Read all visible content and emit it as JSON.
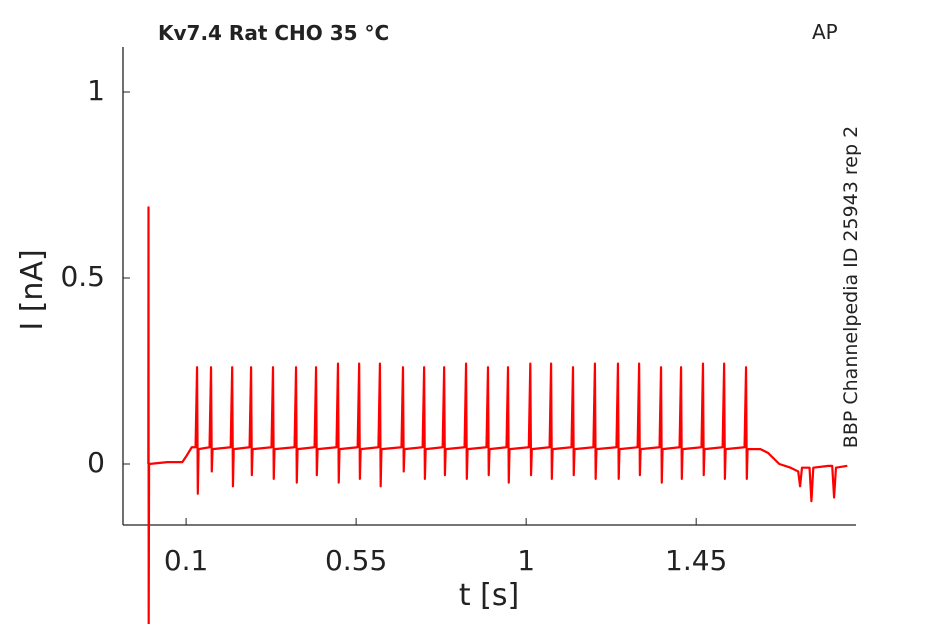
{
  "chart_data": {
    "type": "line",
    "title": "Kv7.4  Rat  CHO  35 °C",
    "annotation": "AP",
    "side_note": "BBP Channelpedia ID 25943 rep 2",
    "x_label": "t [s]",
    "y_label": "I [nA]",
    "xlim": [
      -0.067,
      1.873
    ],
    "ylim": [
      -0.164,
      1.121
    ],
    "xticks": [
      0.1,
      0.55,
      1,
      1.45
    ],
    "yticks": [
      0,
      0.5,
      1
    ],
    "x": [
      0,
      0.0005,
      0.001,
      0.002,
      0.05,
      0.09,
      0.1,
      0.115,
      0.125,
      0.129,
      0.131,
      0.133,
      0.162,
      0.166,
      0.168,
      0.17,
      0.218,
      0.222,
      0.224,
      0.226,
      0.268,
      0.272,
      0.274,
      0.276,
      0.326,
      0.33,
      0.332,
      0.334,
      0.387,
      0.391,
      0.393,
      0.395,
      0.44,
      0.444,
      0.446,
      0.448,
      0.498,
      0.502,
      0.504,
      0.506,
      0.554,
      0.558,
      0.56,
      0.562,
      0.609,
      0.613,
      0.615,
      0.617,
      0.67,
      0.674,
      0.676,
      0.678,
      0.726,
      0.73,
      0.732,
      0.734,
      0.779,
      0.783,
      0.785,
      0.787,
      0.837,
      0.841,
      0.843,
      0.845,
      0.895,
      0.899,
      0.901,
      0.903,
      0.948,
      0.952,
      0.954,
      0.956,
      1.007,
      1.011,
      1.013,
      1.015,
      1.062,
      1.066,
      1.068,
      1.07,
      1.12,
      1.124,
      1.126,
      1.128,
      1.178,
      1.182,
      1.184,
      1.186,
      1.239,
      1.243,
      1.245,
      1.247,
      1.295,
      1.299,
      1.301,
      1.303,
      1.353,
      1.357,
      1.359,
      1.361,
      1.406,
      1.41,
      1.412,
      1.414,
      1.464,
      1.468,
      1.47,
      1.472,
      1.52,
      1.524,
      1.526,
      1.528,
      1.578,
      1.582,
      1.584,
      1.586,
      1.62,
      1.64,
      1.67,
      1.7,
      1.72,
      1.725,
      1.73,
      1.75,
      1.755,
      1.76,
      1.8,
      1.81,
      1.815,
      1.82,
      1.85
    ],
    "series": [
      {
        "color": "#ff0000",
        "values": [
          0,
          0.69,
          -0.43,
          0,
          0.005,
          0.005,
          0.02,
          0.045,
          0.045,
          0.26,
          -0.08,
          0.04,
          0.045,
          0.26,
          -0.02,
          0.04,
          0.045,
          0.26,
          -0.06,
          0.04,
          0.045,
          0.26,
          -0.03,
          0.04,
          0.045,
          0.26,
          -0.04,
          0.04,
          0.045,
          0.26,
          -0.05,
          0.04,
          0.045,
          0.26,
          -0.03,
          0.04,
          0.045,
          0.27,
          -0.05,
          0.04,
          0.045,
          0.27,
          -0.04,
          0.04,
          0.045,
          0.27,
          -0.06,
          0.04,
          0.045,
          0.26,
          -0.02,
          0.04,
          0.045,
          0.26,
          -0.04,
          0.04,
          0.045,
          0.26,
          -0.03,
          0.04,
          0.045,
          0.27,
          -0.04,
          0.04,
          0.045,
          0.26,
          -0.03,
          0.04,
          0.045,
          0.26,
          -0.05,
          0.04,
          0.045,
          0.27,
          -0.03,
          0.04,
          0.045,
          0.27,
          -0.04,
          0.04,
          0.045,
          0.26,
          -0.03,
          0.04,
          0.045,
          0.27,
          -0.04,
          0.04,
          0.045,
          0.27,
          -0.04,
          0.04,
          0.045,
          0.27,
          -0.03,
          0.04,
          0.045,
          0.26,
          -0.05,
          0.04,
          0.045,
          0.26,
          -0.04,
          0.04,
          0.045,
          0.27,
          -0.03,
          0.04,
          0.045,
          0.27,
          -0.04,
          0.04,
          0.045,
          0.26,
          -0.04,
          0.04,
          0.04,
          0.03,
          0.0,
          -0.01,
          -0.02,
          -0.06,
          -0.01,
          -0.01,
          -0.1,
          -0.01,
          -0.005,
          -0.005,
          -0.09,
          -0.01,
          -0.005
        ]
      }
    ]
  }
}
